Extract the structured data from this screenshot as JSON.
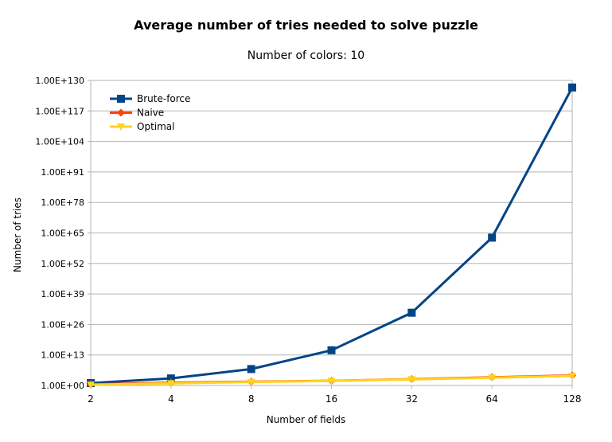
{
  "chart_data": {
    "type": "line",
    "title": "Average number of tries needed to solve puzzle",
    "subtitle": "Number of colors: 10",
    "xlabel": "Number of fields",
    "ylabel": "Number of tries",
    "y_scale": "log",
    "ylim": [
      1,
      1e+130
    ],
    "y_ticks": [
      "1.00E+00",
      "1.00E+13",
      "1.00E+26",
      "1.00E+39",
      "1.00E+52",
      "1.00E+65",
      "1.00E+78",
      "1.00E+91",
      "1.00E+104",
      "1.00E+117",
      "1.00E+130"
    ],
    "categories": [
      "2",
      "4",
      "8",
      "16",
      "32",
      "64",
      "128"
    ],
    "grid": "horizontal",
    "legend_position": "top-left",
    "series": [
      {
        "name": "Brute-force",
        "color": "#004586",
        "marker": "square",
        "values": [
          10.0,
          1000.0,
          10000000.0,
          1000000000000000.0,
          1e+31,
          1e+63,
          1e+127
        ]
      },
      {
        "name": "Naive",
        "color": "#ff420e",
        "marker": "diamond",
        "values": [
          3,
          15,
          40,
          100,
          500,
          3000,
          20000
        ]
      },
      {
        "name": "Optimal",
        "color": "#ffd320",
        "marker": "triangle-down",
        "values": [
          2,
          8,
          30,
          90,
          400,
          2000,
          12000
        ]
      }
    ]
  }
}
